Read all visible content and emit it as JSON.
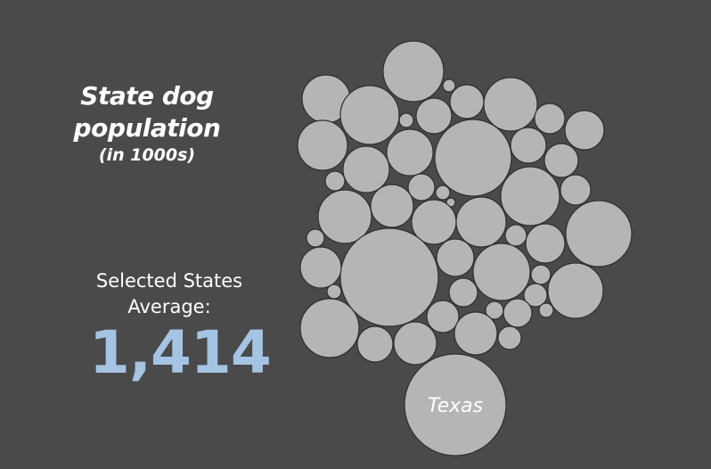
{
  "title_line1": "State dog",
  "title_line2": "population",
  "title_unit": "(in 1000s)",
  "average_label_line1": "Selected States",
  "average_label_line2": "Average:",
  "average_value": "1,414",
  "colors": {
    "background": "#4a4a4a",
    "bubble": "#b5b5b5",
    "bubble_stroke": "#2f2f2f",
    "average_value": "#a5c3e3"
  },
  "chart_data": {
    "type": "bubble",
    "title": "State dog population",
    "unit": "(in 1000s)",
    "labeled_bubbles": [
      "Texas"
    ]
  }
}
